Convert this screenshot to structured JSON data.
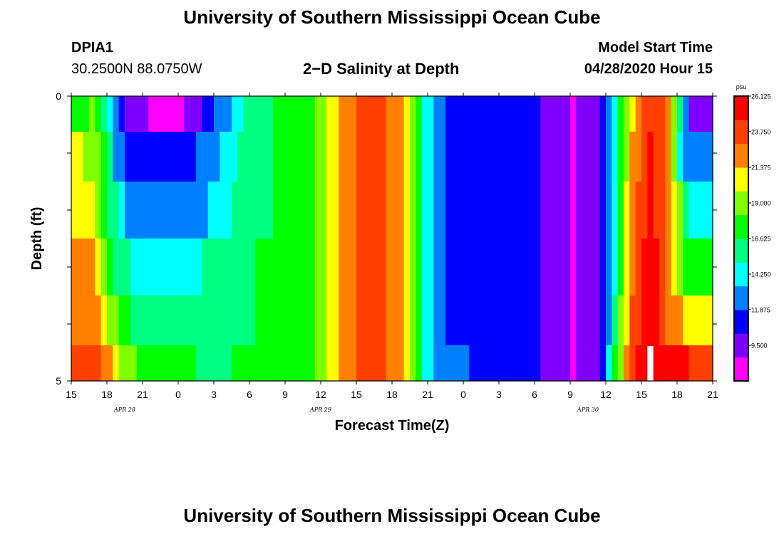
{
  "page": {
    "title_top": "University of Southern Mississippi Ocean Cube",
    "title_bottom": "University of Southern Mississippi Ocean Cube",
    "station_id": "DPIA1",
    "station_coords": "30.2500N 88.0750W",
    "plot_title": "2−D Salinity at Depth",
    "model_start_label": "Model Start Time",
    "model_start_value": "04/28/2020 Hour 15"
  },
  "chart_data": {
    "type": "heatmap",
    "title": "2−D Salinity at Depth",
    "xlabel": "Forecast Time(Z)",
    "ylabel": "Depth (ft)",
    "x_tick_labels": [
      "15",
      "18",
      "21",
      "0",
      "3",
      "6",
      "9",
      "12",
      "15",
      "18",
      "21",
      "0",
      "3",
      "6",
      "9",
      "12",
      "15",
      "18",
      "21"
    ],
    "date_labels": [
      {
        "text": "APR  28",
        "at_tick": 1.5
      },
      {
        "text": "APR  29",
        "at_tick": 7
      },
      {
        "text": "APR  30",
        "at_tick": 14.5
      }
    ],
    "y_tick_labels": [
      "0",
      "",
      "",
      "",
      "",
      "5"
    ],
    "xlim_hours": [
      0,
      54
    ],
    "ylim_ft": [
      0,
      5
    ],
    "colorbar": {
      "unit": "psu",
      "min": 7.125,
      "max": 26.125,
      "labels": [
        "26.125",
        "23.750",
        "21.375",
        "19.000",
        "16.625",
        "14.250",
        "11.875",
        "9.500"
      ],
      "colors": [
        "#ff00ff",
        "#8000ff",
        "#0000ff",
        "#0080ff",
        "#00ffff",
        "#00ff80",
        "#00ff00",
        "#80ff00",
        "#ffff00",
        "#ff8000",
        "#ff4000",
        "#ff0000"
      ]
    },
    "depth_rows_ft": [
      0.25,
      1.0,
      2.0,
      3.0,
      4.0,
      4.75
    ],
    "column_step_hours": 0.5,
    "profiles": [
      {
        "depth_ft": 0.25,
        "points": [
          [
            0,
            17.5
          ],
          [
            2,
            18.5
          ],
          [
            3,
            15
          ],
          [
            4,
            11
          ],
          [
            5,
            9.5
          ],
          [
            7,
            8.5
          ],
          [
            9,
            8.5
          ],
          [
            11,
            10
          ],
          [
            13,
            13
          ],
          [
            15,
            16
          ],
          [
            20,
            17.5
          ],
          [
            21,
            19
          ],
          [
            22,
            21
          ],
          [
            24,
            23
          ],
          [
            26,
            24
          ],
          [
            28,
            21
          ],
          [
            29,
            18
          ],
          [
            30,
            14
          ],
          [
            31,
            12
          ],
          [
            35,
            11
          ],
          [
            39,
            10.5
          ],
          [
            41,
            9
          ],
          [
            42.5,
            8.5
          ],
          [
            44.5,
            10.5
          ],
          [
            45,
            12
          ],
          [
            46,
            16
          ],
          [
            47,
            20
          ],
          [
            48,
            23
          ],
          [
            49,
            25
          ],
          [
            50,
            23
          ],
          [
            51,
            18
          ],
          [
            52,
            10
          ],
          [
            54,
            9
          ]
        ]
      },
      {
        "depth_ft": 1.0,
        "points": [
          [
            0,
            20
          ],
          [
            2,
            19.5
          ],
          [
            3,
            16
          ],
          [
            4,
            12.5
          ],
          [
            5,
            11
          ],
          [
            7,
            11
          ],
          [
            9,
            11
          ],
          [
            11,
            12
          ],
          [
            13,
            14
          ],
          [
            15,
            16
          ],
          [
            20,
            17.5
          ],
          [
            21,
            19
          ],
          [
            22,
            21
          ],
          [
            24,
            23
          ],
          [
            26,
            24
          ],
          [
            28,
            21
          ],
          [
            29,
            18
          ],
          [
            30,
            14
          ],
          [
            31,
            12
          ],
          [
            35,
            11
          ],
          [
            39,
            10.5
          ],
          [
            41,
            9
          ],
          [
            42.5,
            8.5
          ],
          [
            44.5,
            10.5
          ],
          [
            45,
            12
          ],
          [
            46,
            16
          ],
          [
            47,
            21
          ],
          [
            48,
            23.5
          ],
          [
            49,
            25
          ],
          [
            50,
            23
          ],
          [
            50.5,
            21
          ],
          [
            51,
            16
          ],
          [
            52,
            12
          ],
          [
            54,
            12
          ]
        ]
      },
      {
        "depth_ft": 2.0,
        "points": [
          [
            0,
            21
          ],
          [
            2,
            20.5
          ],
          [
            3,
            17
          ],
          [
            4,
            14.5
          ],
          [
            5,
            13
          ],
          [
            7,
            12.5
          ],
          [
            9,
            12.5
          ],
          [
            11,
            13
          ],
          [
            13,
            14.5
          ],
          [
            15,
            16
          ],
          [
            20,
            17.5
          ],
          [
            21,
            19
          ],
          [
            22,
            21
          ],
          [
            24,
            23
          ],
          [
            26,
            24
          ],
          [
            28,
            21
          ],
          [
            29,
            18
          ],
          [
            30,
            14
          ],
          [
            31,
            12
          ],
          [
            35,
            11
          ],
          [
            39,
            10.5
          ],
          [
            41,
            9
          ],
          [
            42.5,
            8.5
          ],
          [
            44.5,
            10.5
          ],
          [
            45,
            12
          ],
          [
            46,
            16
          ],
          [
            47,
            21.5
          ],
          [
            48,
            24
          ],
          [
            49,
            25
          ],
          [
            50,
            23
          ],
          [
            51,
            20
          ],
          [
            52,
            15
          ],
          [
            54,
            15
          ]
        ]
      },
      {
        "depth_ft": 3.0,
        "points": [
          [
            0,
            22
          ],
          [
            2,
            21.5
          ],
          [
            3,
            18
          ],
          [
            4,
            16
          ],
          [
            5,
            15
          ],
          [
            7,
            14.5
          ],
          [
            9,
            14.5
          ],
          [
            11,
            15
          ],
          [
            13,
            15.5
          ],
          [
            15,
            16.5
          ],
          [
            20,
            17.5
          ],
          [
            21,
            19
          ],
          [
            22,
            21
          ],
          [
            24,
            23
          ],
          [
            26,
            24
          ],
          [
            28,
            21
          ],
          [
            29,
            18
          ],
          [
            30,
            14
          ],
          [
            31,
            12
          ],
          [
            35,
            11
          ],
          [
            39,
            10.5
          ],
          [
            41,
            9
          ],
          [
            42.5,
            8.5
          ],
          [
            44.5,
            10.5
          ],
          [
            45,
            12
          ],
          [
            46,
            16
          ],
          [
            47,
            22
          ],
          [
            48,
            24.5
          ],
          [
            49,
            25.5
          ],
          [
            50,
            23
          ],
          [
            51,
            19
          ],
          [
            52,
            17.5
          ],
          [
            54,
            17.5
          ]
        ]
      },
      {
        "depth_ft": 4.0,
        "points": [
          [
            0,
            23
          ],
          [
            2,
            22.5
          ],
          [
            3,
            20
          ],
          [
            4,
            18
          ],
          [
            5,
            16.5
          ],
          [
            7,
            15.5
          ],
          [
            9,
            15.5
          ],
          [
            11,
            15.5
          ],
          [
            13,
            16
          ],
          [
            15,
            16.5
          ],
          [
            20,
            17.5
          ],
          [
            21,
            19
          ],
          [
            22,
            21
          ],
          [
            24,
            23
          ],
          [
            26,
            24
          ],
          [
            28,
            21
          ],
          [
            29,
            18
          ],
          [
            30,
            14
          ],
          [
            31,
            12
          ],
          [
            35,
            11
          ],
          [
            39,
            10.5
          ],
          [
            41,
            9
          ],
          [
            42.5,
            8.5
          ],
          [
            44.5,
            10.5
          ],
          [
            45,
            12
          ],
          [
            46,
            17
          ],
          [
            47,
            22.5
          ],
          [
            48,
            25
          ],
          [
            49,
            25.5
          ],
          [
            50,
            23
          ],
          [
            51,
            21.5
          ],
          [
            52,
            21
          ],
          [
            54,
            20
          ]
        ]
      },
      {
        "depth_ft": 4.75,
        "points": [
          [
            0,
            24.5
          ],
          [
            2,
            24
          ],
          [
            3,
            22
          ],
          [
            4,
            20
          ],
          [
            5,
            18.5
          ],
          [
            7,
            17.5
          ],
          [
            9,
            17
          ],
          [
            11,
            16.5
          ],
          [
            13,
            16.5
          ],
          [
            15,
            17
          ],
          [
            20,
            17.5
          ],
          [
            21,
            19
          ],
          [
            22,
            21
          ],
          [
            24,
            23
          ],
          [
            26,
            24
          ],
          [
            28,
            21
          ],
          [
            29,
            18
          ],
          [
            30,
            14
          ],
          [
            31,
            12.5
          ],
          [
            35,
            11.5
          ],
          [
            39,
            10.5
          ],
          [
            41,
            9
          ],
          [
            42.5,
            8.5
          ],
          [
            44.5,
            10.5
          ],
          [
            45,
            13
          ],
          [
            46,
            18
          ],
          [
            47,
            23
          ],
          [
            48,
            25.5
          ],
          [
            49,
            26
          ],
          [
            50,
            25
          ],
          [
            52,
            24.5
          ],
          [
            54,
            24.5
          ]
        ]
      }
    ],
    "missing_cell": {
      "hour": 48.5,
      "depth_ft": 4.75,
      "value": null
    }
  },
  "colors": {
    "background": "#ffffff",
    "missing": "#ffffff",
    "frame": "#000000"
  }
}
